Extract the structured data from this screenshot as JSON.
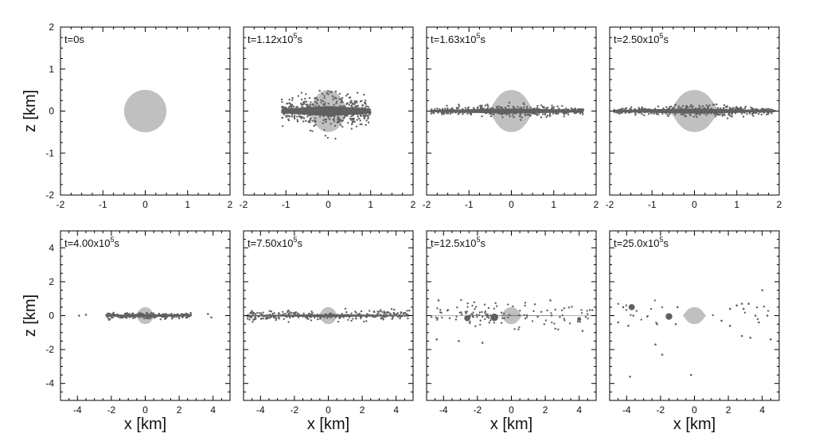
{
  "chart_data": {
    "type": "scatter",
    "layout": {
      "rows": 2,
      "columns": 4
    },
    "colors": {
      "body": "#c0c0c0",
      "particles": "#606060",
      "frame": "#000000",
      "background": "#ffffff"
    },
    "rows": [
      {
        "xlabel": "",
        "ylabel": "z [km]",
        "xlim": [
          -2,
          2
        ],
        "ylim": [
          -2,
          2
        ],
        "xticks": [
          -2,
          -1,
          0,
          1,
          2
        ],
        "yticks": [
          -2,
          -1,
          0,
          1,
          2
        ],
        "xtick_labels": [
          "-2",
          "-1",
          "0",
          "1",
          "2"
        ],
        "ytick_labels": [
          "-2",
          "-1",
          "0",
          "1",
          "2"
        ]
      },
      {
        "xlabel": "x [km]",
        "ylabel": "z [km]",
        "xlim": [
          -5,
          5
        ],
        "ylim": [
          -5,
          5
        ],
        "xticks": [
          -4,
          -2,
          0,
          2,
          4
        ],
        "yticks": [
          -4,
          -2,
          0,
          2,
          4
        ],
        "xtick_labels": [
          "-4",
          "-2",
          "0",
          "2",
          "4"
        ],
        "ytick_labels": [
          "-4",
          "-2",
          "0",
          "2",
          "4"
        ]
      }
    ],
    "panels": [
      {
        "row": 0,
        "time": {
          "prefix": "t=0s",
          "exponent": "",
          "suffix": ""
        },
        "body": {
          "shape": "sphere",
          "radius_km": 0.5
        },
        "disk": null,
        "clumps": []
      },
      {
        "row": 0,
        "time": {
          "prefix": "t=1.12x10",
          "exponent": "5",
          "suffix": "s"
        },
        "body": {
          "shape": "oblate",
          "equatorial_radius_km": 0.5,
          "polar_radius_km": 0.5
        },
        "disk": {
          "x_extent_km": [
            -1.1,
            1.0
          ],
          "core_half_thickness_km": 0.12,
          "scatter_km": 0.25
        },
        "clumps": []
      },
      {
        "row": 0,
        "time": {
          "prefix": "t=1.63x10",
          "exponent": "5",
          "suffix": "s"
        },
        "body": {
          "shape": "oblate",
          "equatorial_radius_km": 0.55,
          "polar_radius_km": 0.5
        },
        "disk": {
          "x_extent_km": [
            -1.9,
            1.7
          ],
          "core_half_thickness_km": 0.06,
          "scatter_km": 0.08
        },
        "clumps": []
      },
      {
        "row": 0,
        "time": {
          "prefix": "t=2.50x10",
          "exponent": "5",
          "suffix": "s"
        },
        "body": {
          "shape": "oblate",
          "equatorial_radius_km": 0.6,
          "polar_radius_km": 0.5
        },
        "disk": {
          "x_extent_km": [
            -1.9,
            1.9
          ],
          "core_half_thickness_km": 0.06,
          "scatter_km": 0.08
        },
        "clumps": []
      },
      {
        "row": 1,
        "time": {
          "prefix": "t=4.00x10",
          "exponent": "5",
          "suffix": "s"
        },
        "body": {
          "shape": "oblate",
          "equatorial_radius_km": 0.6,
          "polar_radius_km": 0.5
        },
        "disk": {
          "x_extent_km": [
            -2.3,
            2.7
          ],
          "core_half_thickness_km": 0.08,
          "scatter_km": 0.15
        },
        "outliers": [
          {
            "x": -3.9,
            "z": 0.0
          },
          {
            "x": 3.7,
            "z": 0.1
          },
          {
            "x": 3.9,
            "z": -0.1
          },
          {
            "x": -3.5,
            "z": 0.05
          }
        ],
        "clumps": []
      },
      {
        "row": 1,
        "time": {
          "prefix": "t=7.50x10",
          "exponent": "5",
          "suffix": "s"
        },
        "body": {
          "shape": "oblate",
          "equatorial_radius_km": 0.6,
          "polar_radius_km": 0.5
        },
        "disk": {
          "x_extent_km": [
            -4.8,
            4.8
          ],
          "core_half_thickness_km": 0.08,
          "scatter_km": 0.3
        },
        "outliers": [],
        "clumps": []
      },
      {
        "row": 1,
        "time": {
          "prefix": "t=12.5x10",
          "exponent": "5",
          "suffix": "s"
        },
        "body": {
          "shape": "oblate",
          "equatorial_radius_km": 0.65,
          "polar_radius_km": 0.5
        },
        "disk": {
          "x_extent_km": [
            -4.8,
            4.8
          ],
          "core_half_thickness_km": 0.02,
          "scatter_km": 0.6
        },
        "outliers": [
          {
            "x": -4.4,
            "z": -1.4
          },
          {
            "x": -1.7,
            "z": -1.6
          },
          {
            "x": -3.1,
            "z": -1.5
          },
          {
            "x": 4.2,
            "z": -0.9
          },
          {
            "x": -4.3,
            "z": 0.9
          },
          {
            "x": 2.3,
            "z": 0.9
          }
        ],
        "clumps": [
          {
            "x": -2.6,
            "z": -0.15,
            "r": 0.2
          },
          {
            "x": -1.0,
            "z": -0.1,
            "r": 0.25
          },
          {
            "x": 4.0,
            "z": -0.2,
            "r": 0.1
          }
        ]
      },
      {
        "row": 1,
        "time": {
          "prefix": "t=25.0x10",
          "exponent": "5",
          "suffix": "s"
        },
        "body": {
          "shape": "oblate",
          "equatorial_radius_km": 0.7,
          "polar_radius_km": 0.5
        },
        "disk": null,
        "outliers": [
          {
            "x": -3.8,
            "z": -3.6
          },
          {
            "x": -0.2,
            "z": -3.5
          },
          {
            "x": 4.0,
            "z": 1.5
          },
          {
            "x": -2.3,
            "z": -1.7
          },
          {
            "x": -1.9,
            "z": -2.3
          },
          {
            "x": 4.5,
            "z": -1.4
          },
          {
            "x": 3.3,
            "z": -1.3
          },
          {
            "x": 2.5,
            "z": 0.6
          },
          {
            "x": 2.8,
            "z": 0.7
          },
          {
            "x": 2.9,
            "z": 0.4
          },
          {
            "x": 3.2,
            "z": 0.7
          },
          {
            "x": 2.1,
            "z": 0.4
          },
          {
            "x": -4.5,
            "z": -0.4
          },
          {
            "x": -3.9,
            "z": -0.6
          },
          {
            "x": -2.2,
            "z": -0.5
          },
          {
            "x": 1.6,
            "z": -0.3
          },
          {
            "x": 2.1,
            "z": -0.6
          },
          {
            "x": 3.8,
            "z": -0.4
          },
          {
            "x": 4.3,
            "z": 0.0
          },
          {
            "x": -3.6,
            "z": 0.0
          },
          {
            "x": 3.6,
            "z": 0.0
          },
          {
            "x": -1.1,
            "z": -0.5
          },
          {
            "x": -1.0,
            "z": 0.5
          },
          {
            "x": 2.8,
            "z": -1.2
          },
          {
            "x": -4.2,
            "z": 0.5
          }
        ],
        "clumps": [
          {
            "x": -3.7,
            "z": 0.5,
            "r": 0.2
          },
          {
            "x": -1.5,
            "z": -0.05,
            "r": 0.22
          }
        ]
      }
    ]
  }
}
